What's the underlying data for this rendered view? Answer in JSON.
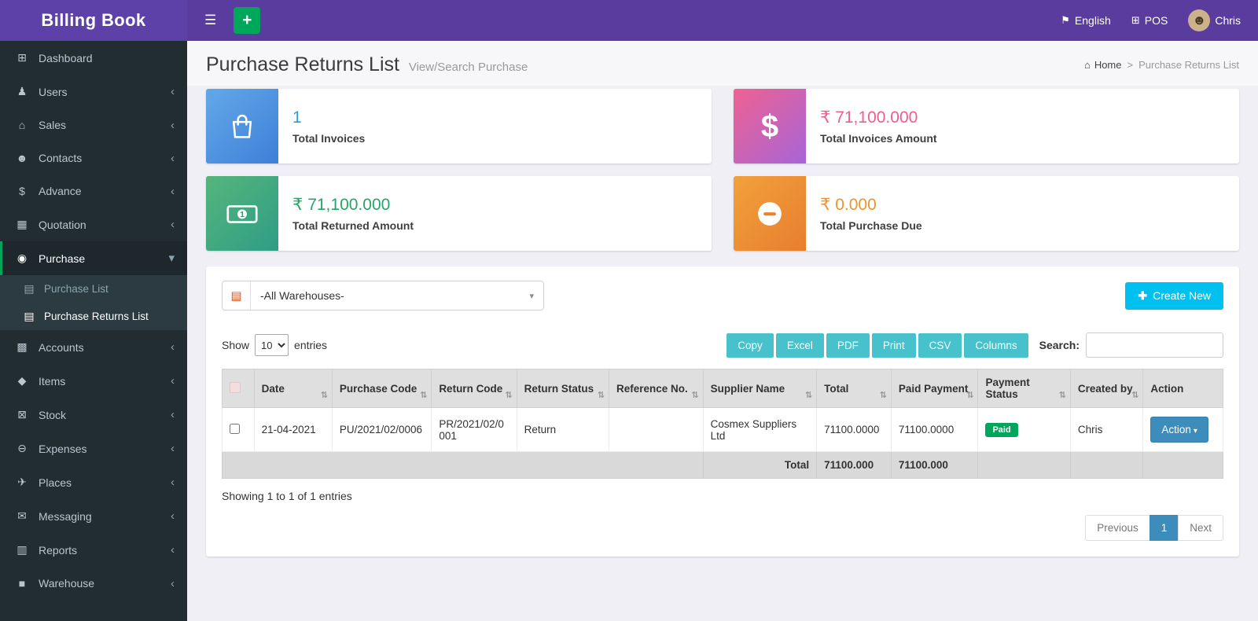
{
  "brand": {
    "title": "Billing Book"
  },
  "topbar": {
    "language_label": "English",
    "pos_label": "POS",
    "user_name": "Chris"
  },
  "sidebar": {
    "items": [
      {
        "label": "Dashboard",
        "icon": "dashboard-icon",
        "has_children": false,
        "active": false
      },
      {
        "label": "Users",
        "icon": "users-icon",
        "has_children": true,
        "active": false
      },
      {
        "label": "Sales",
        "icon": "sales-icon",
        "has_children": true,
        "active": false
      },
      {
        "label": "Contacts",
        "icon": "contacts-icon",
        "has_children": true,
        "active": false
      },
      {
        "label": "Advance",
        "icon": "advance-icon",
        "has_children": true,
        "active": false
      },
      {
        "label": "Quotation",
        "icon": "quotation-icon",
        "has_children": true,
        "active": false
      },
      {
        "label": "Purchase",
        "icon": "purchase-icon",
        "has_children": true,
        "active": true,
        "expanded": true,
        "children": [
          {
            "label": "Purchase List",
            "active": false
          },
          {
            "label": "Purchase Returns List",
            "active": true
          }
        ]
      },
      {
        "label": "Accounts",
        "icon": "accounts-icon",
        "has_children": true,
        "active": false
      },
      {
        "label": "Items",
        "icon": "items-icon",
        "has_children": true,
        "active": false
      },
      {
        "label": "Stock",
        "icon": "stock-icon",
        "has_children": true,
        "active": false
      },
      {
        "label": "Expenses",
        "icon": "expenses-icon",
        "has_children": true,
        "active": false
      },
      {
        "label": "Places",
        "icon": "places-icon",
        "has_children": true,
        "active": false
      },
      {
        "label": "Messaging",
        "icon": "messaging-icon",
        "has_children": true,
        "active": false
      },
      {
        "label": "Reports",
        "icon": "reports-icon",
        "has_children": true,
        "active": false
      },
      {
        "label": "Warehouse",
        "icon": "warehouse-icon",
        "has_children": true,
        "active": false
      }
    ]
  },
  "page": {
    "title": "Purchase Returns List",
    "subtitle": "View/Search Purchase",
    "breadcrumb_home": "Home",
    "breadcrumb_separator": ">",
    "breadcrumb_current": "Purchase Returns List"
  },
  "stats": [
    {
      "value": "1",
      "label": "Total Invoices",
      "icon": "shopping-bag-icon",
      "value_color": "#2d9cdb",
      "gradient": [
        "#62a9e8",
        "#3f7fd8"
      ]
    },
    {
      "value": "₹ 71,100.000",
      "label": "Total Invoices Amount",
      "icon": "dollar-icon",
      "value_color": "#ef5e8c",
      "gradient": [
        "#ef6292",
        "#a764d8"
      ]
    },
    {
      "value": "₹ 71,100.000",
      "label": "Total Returned Amount",
      "icon": "banknote-icon",
      "value_color": "#27a567",
      "gradient": [
        "#55b57c",
        "#2f9d85"
      ]
    },
    {
      "value": "₹ 0.000",
      "label": "Total Purchase Due",
      "icon": "minus-circle-icon",
      "value_color": "#f0932b",
      "gradient": [
        "#f2a13c",
        "#e77e2e"
      ]
    }
  ],
  "filters": {
    "warehouse_selected": "-All Warehouses-",
    "create_new_label": "Create New"
  },
  "table_controls": {
    "show_label": "Show",
    "page_size": "10",
    "entries_label": "entries",
    "export_buttons": [
      "Copy",
      "Excel",
      "PDF",
      "Print",
      "CSV",
      "Columns"
    ],
    "search_label": "Search:"
  },
  "table": {
    "columns": [
      "Date",
      "Purchase Code",
      "Return Code",
      "Return Status",
      "Reference No.",
      "Supplier Name",
      "Total",
      "Paid Payment",
      "Payment Status",
      "Created by",
      "Action"
    ],
    "rows": [
      {
        "date": "21-04-2021",
        "purchase_code": "PU/2021/02/0006",
        "return_code": "PR/2021/02/0001",
        "return_status": "Return",
        "reference_no": "",
        "supplier_name": "Cosmex Suppliers Ltd",
        "total": "71100.0000",
        "paid_payment": "71100.0000",
        "payment_status": "Paid",
        "created_by": "Chris",
        "action_label": "Action"
      }
    ],
    "footer": {
      "label": "Total",
      "total": "71100.000",
      "paid_payment": "71100.000"
    }
  },
  "pagination": {
    "info": "Showing 1 to 1 of 1 entries",
    "previous_label": "Previous",
    "page": "1",
    "next_label": "Next"
  },
  "colors": {
    "topbar_purple": "#5a3b9e",
    "logo_purple": "#5e41a8",
    "sidebar_dark": "#222d32",
    "accent_green": "#00a65a",
    "info_blue": "#00c0ef",
    "primary_blue": "#3c8dbc",
    "export_teal": "#47c1cb",
    "paid_badge_green": "#00a65a"
  }
}
